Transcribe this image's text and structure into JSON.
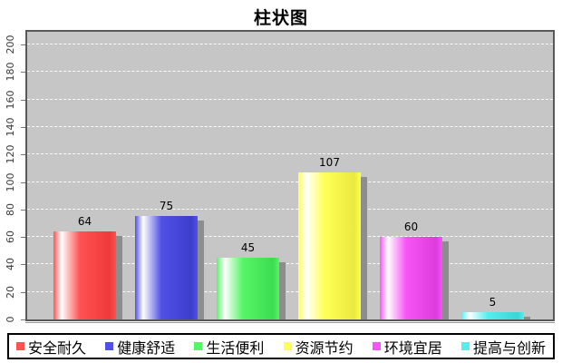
{
  "chart_data": {
    "type": "bar",
    "title": "柱状图",
    "categories": [
      "安全耐久",
      "健康舒适",
      "生活便利",
      "资源节约",
      "环境宜居",
      "提高与创新"
    ],
    "values": [
      64,
      75,
      45,
      107,
      60,
      5
    ],
    "series_colors": [
      "#ff5252",
      "#5050e6",
      "#55f566",
      "#ffff57",
      "#f655f6",
      "#55eeee"
    ],
    "series_colors_dark": [
      "#ef3a3a",
      "#3d3dcc",
      "#3cdc50",
      "#e9e93e",
      "#dd3cdd",
      "#3cd5d5"
    ],
    "xlabel": "",
    "ylabel": "",
    "ylim": [
      0,
      200
    ],
    "ytick_step": 20,
    "yticks": [
      "0",
      "20",
      "40",
      "60",
      "80",
      "100",
      "120",
      "140",
      "160",
      "180",
      "200"
    ],
    "grid": "horizontal-white-dashed",
    "value_labels_shown": true,
    "legend_position": "bottom",
    "plot_background": "#c6c6c6",
    "page_background": "#ffffff",
    "shadow_color": "#8d8d8d"
  }
}
